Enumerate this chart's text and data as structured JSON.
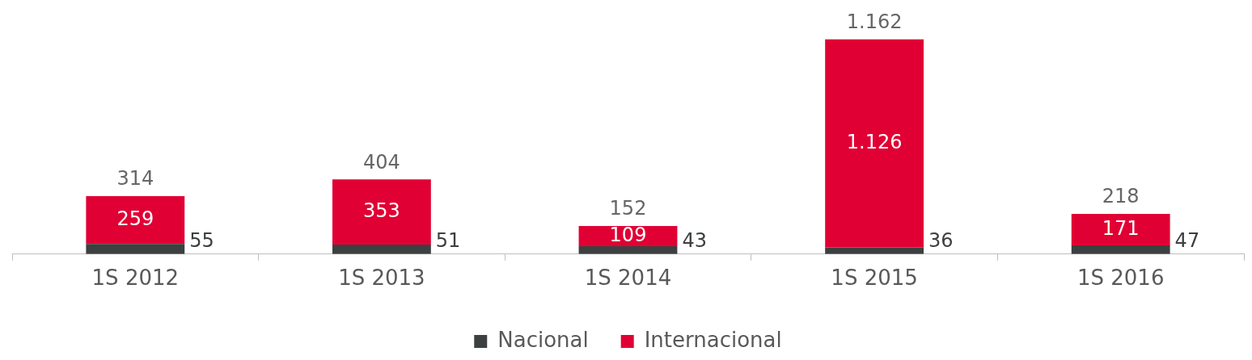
{
  "chart_data": {
    "type": "bar",
    "stacked": true,
    "categories": [
      "1S 2012",
      "1S 2013",
      "1S 2014",
      "1S 2015",
      "1S 2016"
    ],
    "series": [
      {
        "name": "Nacional",
        "color": "#3c4040",
        "values": [
          55,
          51,
          43,
          36,
          47
        ],
        "value_labels": [
          "55",
          "51",
          "43",
          "36",
          "47"
        ]
      },
      {
        "name": "Internacional",
        "color": "#e00034",
        "values": [
          259,
          353,
          109,
          1126,
          171
        ],
        "value_labels": [
          "259",
          "353",
          "109",
          "1.126",
          "171"
        ]
      }
    ],
    "totals": [
      "314",
      "404",
      "152",
      "1.162",
      "218"
    ],
    "legend": "bottom",
    "grid": false,
    "tick_labels": "x"
  }
}
